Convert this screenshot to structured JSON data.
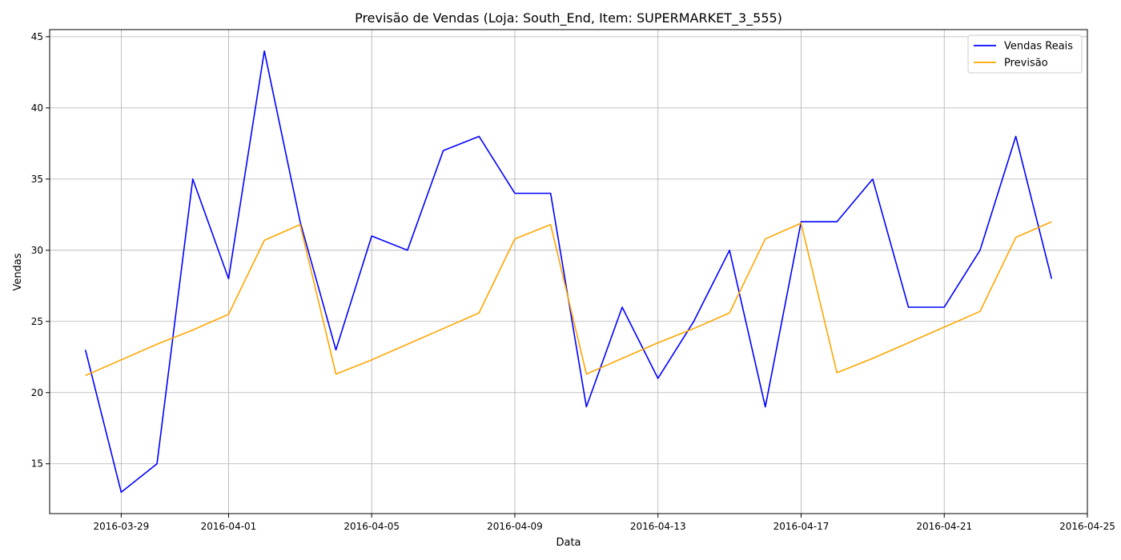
{
  "chart_data": {
    "type": "line",
    "title": "Previsão de Vendas (Loja: South_End, Item: SUPERMARKET_3_555)",
    "xlabel": "Data",
    "ylabel": "Vendas",
    "grid": true,
    "legend_position": "top-right",
    "xlim": [
      "2016-03-27",
      "2016-04-25"
    ],
    "ylim": [
      11.5,
      45.5
    ],
    "x_ticks": [
      "2016-03-29",
      "2016-04-01",
      "2016-04-05",
      "2016-04-09",
      "2016-04-13",
      "2016-04-17",
      "2016-04-21",
      "2016-04-25"
    ],
    "y_ticks": [
      15,
      20,
      25,
      30,
      35,
      40,
      45
    ],
    "x": [
      "2016-03-28",
      "2016-03-29",
      "2016-03-30",
      "2016-03-31",
      "2016-04-01",
      "2016-04-02",
      "2016-04-03",
      "2016-04-04",
      "2016-04-05",
      "2016-04-06",
      "2016-04-07",
      "2016-04-08",
      "2016-04-09",
      "2016-04-10",
      "2016-04-11",
      "2016-04-12",
      "2016-04-13",
      "2016-04-14",
      "2016-04-15",
      "2016-04-16",
      "2016-04-17",
      "2016-04-18",
      "2016-04-19",
      "2016-04-20",
      "2016-04-21",
      "2016-04-22",
      "2016-04-23",
      "2016-04-24"
    ],
    "series": [
      {
        "name": "Vendas Reais",
        "color": "#0000ff",
        "values": [
          23,
          13,
          15,
          35,
          28,
          44,
          32,
          23,
          31,
          30,
          37,
          38,
          34,
          34,
          19,
          26,
          21,
          25,
          30,
          19,
          32,
          32,
          35,
          26,
          26,
          30,
          38,
          28
        ]
      },
      {
        "name": "Previsão",
        "color": "#ffa500",
        "values": [
          21.2,
          22.3,
          23.4,
          24.4,
          25.5,
          30.7,
          31.8,
          21.3,
          22.3,
          23.4,
          24.5,
          25.6,
          30.8,
          31.8,
          21.3,
          22.4,
          23.5,
          24.5,
          25.6,
          30.8,
          31.9,
          21.4,
          22.4,
          23.5,
          24.6,
          25.7,
          30.9,
          32.0
        ]
      }
    ]
  }
}
